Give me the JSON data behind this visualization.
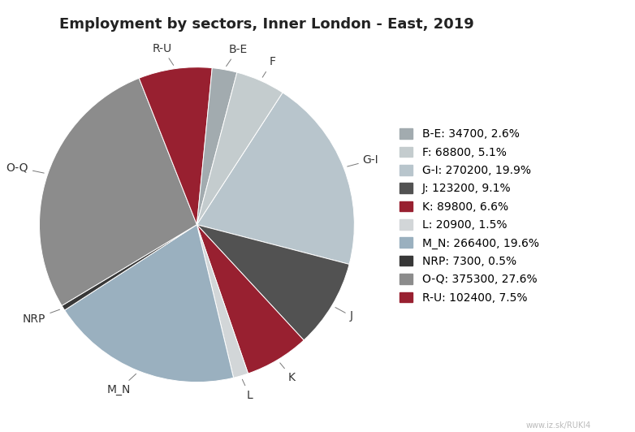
{
  "title": "Employment by sectors, Inner London - East, 2019",
  "sectors": [
    "B-E",
    "F",
    "G-I",
    "J",
    "K",
    "L",
    "M_N",
    "NRP",
    "O-Q",
    "R-U"
  ],
  "values": [
    34700,
    68800,
    270200,
    123200,
    89800,
    20900,
    266400,
    7300,
    375300,
    102400
  ],
  "legend_labels": [
    "B-E: 34700, 2.6%",
    "F: 68800, 5.1%",
    "G-I: 270200, 19.9%",
    "J: 123200, 9.1%",
    "K: 89800, 6.6%",
    "L: 20900, 1.5%",
    "M_N: 266400, 19.6%",
    "NRP: 7300, 0.5%",
    "O-Q: 375300, 27.6%",
    "R-U: 102400, 7.5%"
  ],
  "colors_map": {
    "G-I": "#b8c5cc",
    "J": "#525252",
    "K": "#982030",
    "L": "#d2d6d8",
    "M_N": "#9ab0bf",
    "NRP": "#383838",
    "O-Q": "#8c8c8c",
    "R-U": "#982030",
    "B-E": "#a2abaf",
    "F": "#c4ccce"
  },
  "order": [
    "G-I",
    "J",
    "K",
    "L",
    "M_N",
    "NRP",
    "O-Q",
    "R-U",
    "B-E",
    "F"
  ],
  "background_color": "#ffffff",
  "title_fontsize": 13,
  "label_fontsize": 10,
  "legend_fontsize": 10,
  "startangle": 57,
  "watermark": "www.iz.sk/RUKI4"
}
